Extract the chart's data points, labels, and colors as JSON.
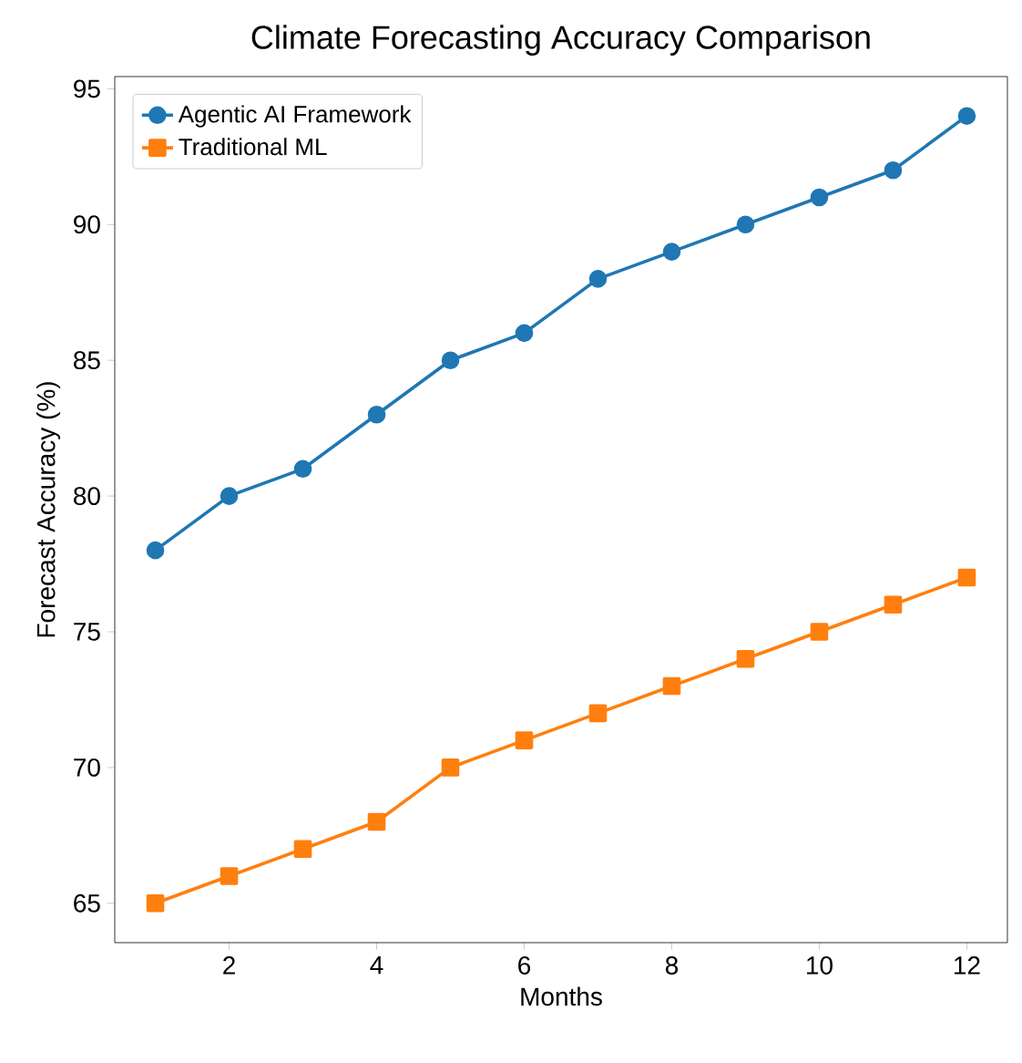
{
  "chart_data": {
    "type": "line",
    "title": "Climate Forecasting Accuracy Comparison",
    "xlabel": "Months",
    "ylabel": "Forecast Accuracy (%)",
    "x": [
      1,
      2,
      3,
      4,
      5,
      6,
      7,
      8,
      9,
      10,
      11,
      12
    ],
    "series": [
      {
        "name": "Agentic AI Framework",
        "color": "#1f77b4",
        "marker": "circle",
        "values": [
          78,
          80,
          81,
          83,
          85,
          86,
          88,
          89,
          90,
          91,
          92,
          94
        ]
      },
      {
        "name": "Traditional ML",
        "color": "#ff7f0e",
        "marker": "square",
        "values": [
          65,
          66,
          67,
          68,
          70,
          71,
          72,
          73,
          74,
          75,
          76,
          77
        ]
      }
    ],
    "xlim": [
      0.45,
      12.55
    ],
    "ylim": [
      63.55,
      95.45
    ],
    "xticks": [
      2,
      4,
      6,
      8,
      10,
      12
    ],
    "yticks": [
      65,
      70,
      75,
      80,
      85,
      90,
      95
    ],
    "legend": "top left",
    "line_style": "solid",
    "grid": false
  }
}
